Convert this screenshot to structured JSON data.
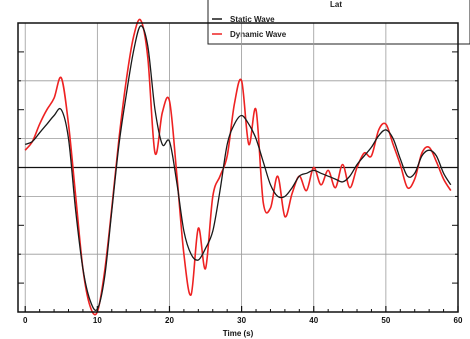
{
  "chart_data": {
    "type": "line",
    "title": "",
    "xlabel": "Time (s)",
    "ylabel": "",
    "xlim": [
      -1,
      60
    ],
    "ylim": [
      -5,
      5
    ],
    "xticks": [
      0,
      10,
      20,
      30,
      40,
      50,
      60
    ],
    "grid": true,
    "legend": {
      "title": "Lat",
      "placement": "top-right",
      "entries": [
        "Static Wave",
        "Dynamic Wave"
      ]
    },
    "series": [
      {
        "name": "Static Wave",
        "color": "#1a1a1a",
        "x": [
          0,
          1,
          2,
          3,
          4,
          5,
          6,
          7,
          8,
          9,
          10,
          11,
          12,
          13,
          14,
          15,
          16,
          17,
          18,
          19,
          20,
          21,
          22,
          23,
          24,
          25,
          26,
          27,
          28,
          29,
          30,
          31,
          32,
          33,
          34,
          35,
          36,
          37,
          38,
          39,
          40,
          41,
          42,
          43,
          44,
          45,
          46,
          47,
          48,
          49,
          50,
          51,
          52,
          53,
          54,
          55,
          56,
          57,
          58,
          59
        ],
        "values": [
          0.8,
          0.9,
          1.2,
          1.5,
          1.8,
          2.0,
          1.0,
          -1.5,
          -3.5,
          -4.6,
          -4.9,
          -3.8,
          -1.5,
          0.8,
          2.5,
          4.0,
          4.9,
          4.2,
          2.0,
          0.8,
          0.9,
          -0.5,
          -2.2,
          -3.0,
          -3.2,
          -2.8,
          -2.2,
          -0.8,
          0.8,
          1.5,
          1.8,
          1.5,
          1.0,
          0.2,
          -0.6,
          -1.0,
          -1.0,
          -0.7,
          -0.3,
          -0.2,
          -0.1,
          -0.2,
          -0.3,
          -0.4,
          -0.5,
          -0.3,
          0.1,
          0.4,
          0.7,
          1.1,
          1.3,
          1.0,
          0.3,
          -0.3,
          -0.2,
          0.4,
          0.6,
          0.4,
          -0.2,
          -0.6
        ]
      },
      {
        "name": "Dynamic Wave",
        "color": "#ee2222",
        "x": [
          0,
          1,
          2,
          3,
          4,
          5,
          6,
          7,
          8,
          9,
          10,
          11,
          12,
          13,
          14,
          15,
          16,
          17,
          18,
          19,
          20,
          21,
          22,
          23,
          24,
          25,
          26,
          27,
          28,
          29,
          30,
          31,
          32,
          33,
          34,
          35,
          36,
          37,
          38,
          39,
          40,
          41,
          42,
          43,
          44,
          45,
          46,
          47,
          48,
          49,
          50,
          51,
          52,
          53,
          54,
          55,
          56,
          57,
          58,
          59
        ],
        "values": [
          0.6,
          0.9,
          1.5,
          2.0,
          2.4,
          3.1,
          1.5,
          -1.0,
          -3.5,
          -4.8,
          -5.0,
          -3.6,
          -1.4,
          1.0,
          3.0,
          4.5,
          5.1,
          3.8,
          0.5,
          1.9,
          2.3,
          -0.2,
          -3.0,
          -4.4,
          -2.1,
          -3.5,
          -1.0,
          -0.3,
          0.4,
          2.2,
          3.0,
          0.8,
          2.0,
          -1.2,
          -1.4,
          -0.3,
          -1.7,
          -0.9,
          -0.3,
          -0.8,
          0.0,
          -0.6,
          -0.1,
          -0.7,
          0.1,
          -0.7,
          0.0,
          0.5,
          0.4,
          1.3,
          1.5,
          0.8,
          0.1,
          -0.7,
          -0.4,
          0.5,
          0.7,
          0.2,
          -0.4,
          -0.8
        ]
      }
    ]
  }
}
